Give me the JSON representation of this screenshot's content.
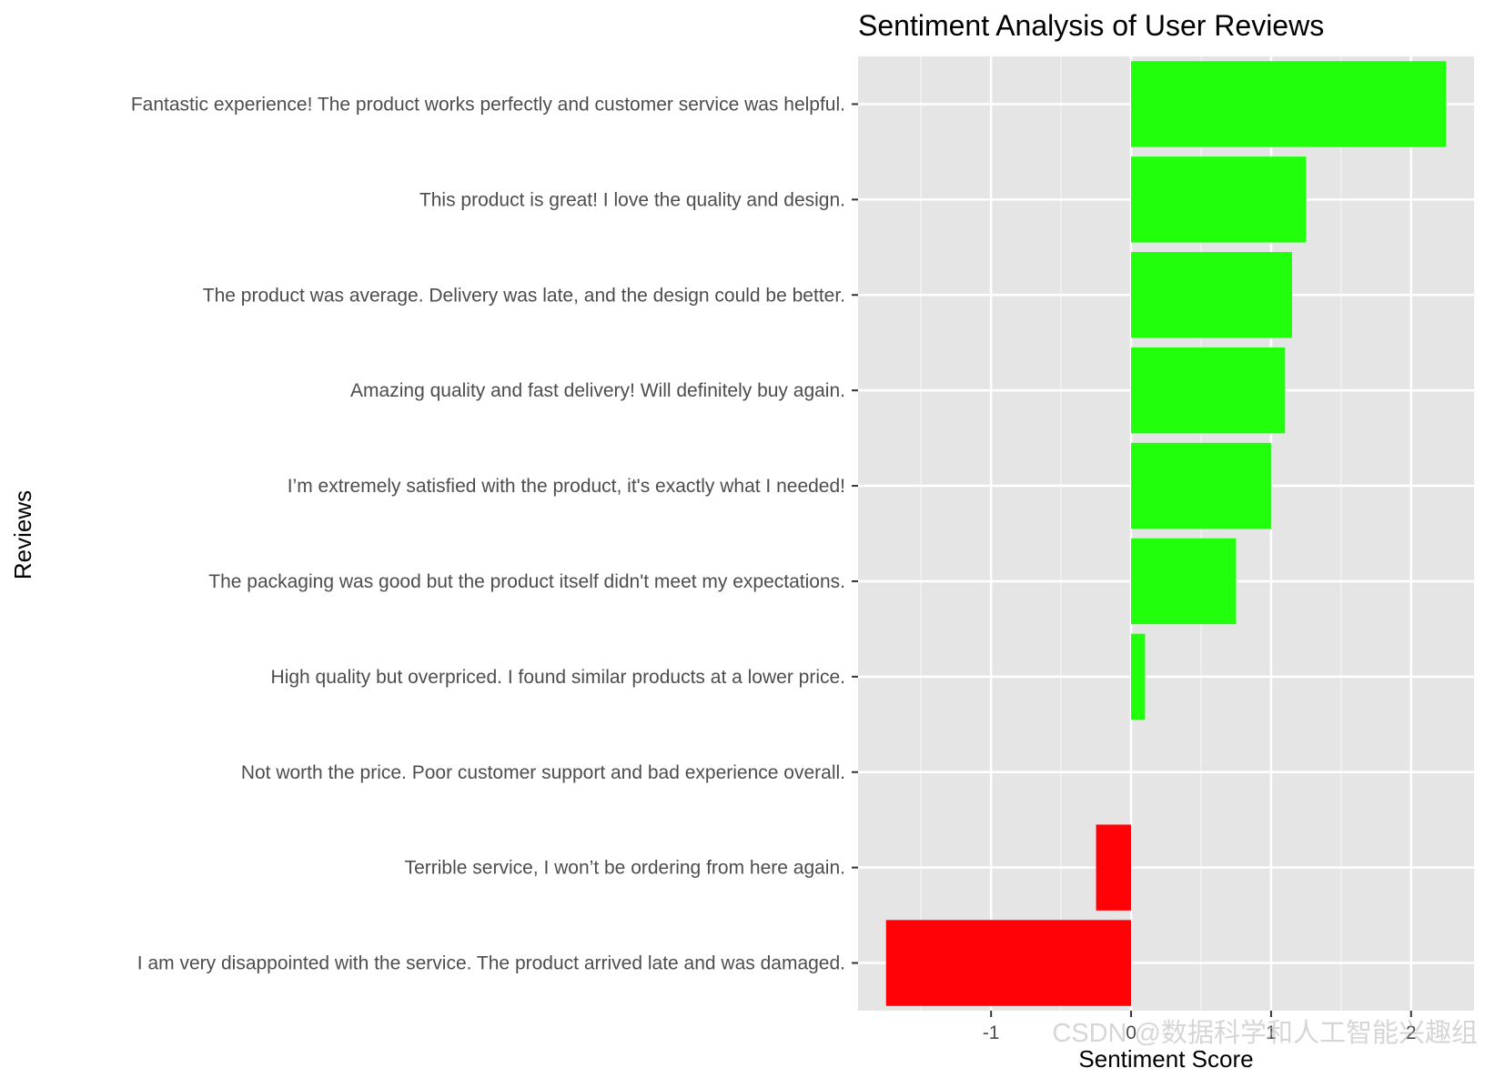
{
  "chart_data": {
    "type": "bar",
    "orientation": "horizontal",
    "title": "Sentiment Analysis of User Reviews",
    "xlabel": "Sentiment Score",
    "ylabel": "Reviews",
    "xlim": [
      -1.95,
      2.45
    ],
    "x_ticks": [
      -1,
      0,
      1,
      2
    ],
    "x_tick_labels": [
      "-1",
      "0",
      "1",
      "2"
    ],
    "grid": true,
    "legend": "none",
    "categories": [
      "Fantastic experience! The product works perfectly and customer service was helpful.",
      "This product is great! I love the quality and design.",
      "The product was average. Delivery was late, and the design could be better.",
      "Amazing quality and fast delivery! Will definitely buy again.",
      "I’m extremely satisfied with the product, it's exactly what I needed!",
      "The packaging was good but the product itself didn't meet my expectations.",
      "High quality but overpriced. I found similar products at a lower price.",
      "Not worth the price. Poor customer support and bad experience overall.",
      "Terrible service, I won’t be ordering from here again.",
      "I am very disappointed with the service. The product arrived late and was damaged."
    ],
    "values": [
      2.25,
      1.25,
      1.15,
      1.1,
      1.0,
      0.75,
      0.1,
      0.0,
      -0.25,
      -1.75
    ],
    "colors": {
      "positive": "#22ff0c",
      "negative": "#ff0208",
      "panel": "#e5e5e5",
      "grid_major": "#ffffff",
      "grid_minor": "#f2f2f2",
      "tick": "#333333"
    }
  },
  "watermark": "CSDN @数据科学和人工智能兴趣组"
}
